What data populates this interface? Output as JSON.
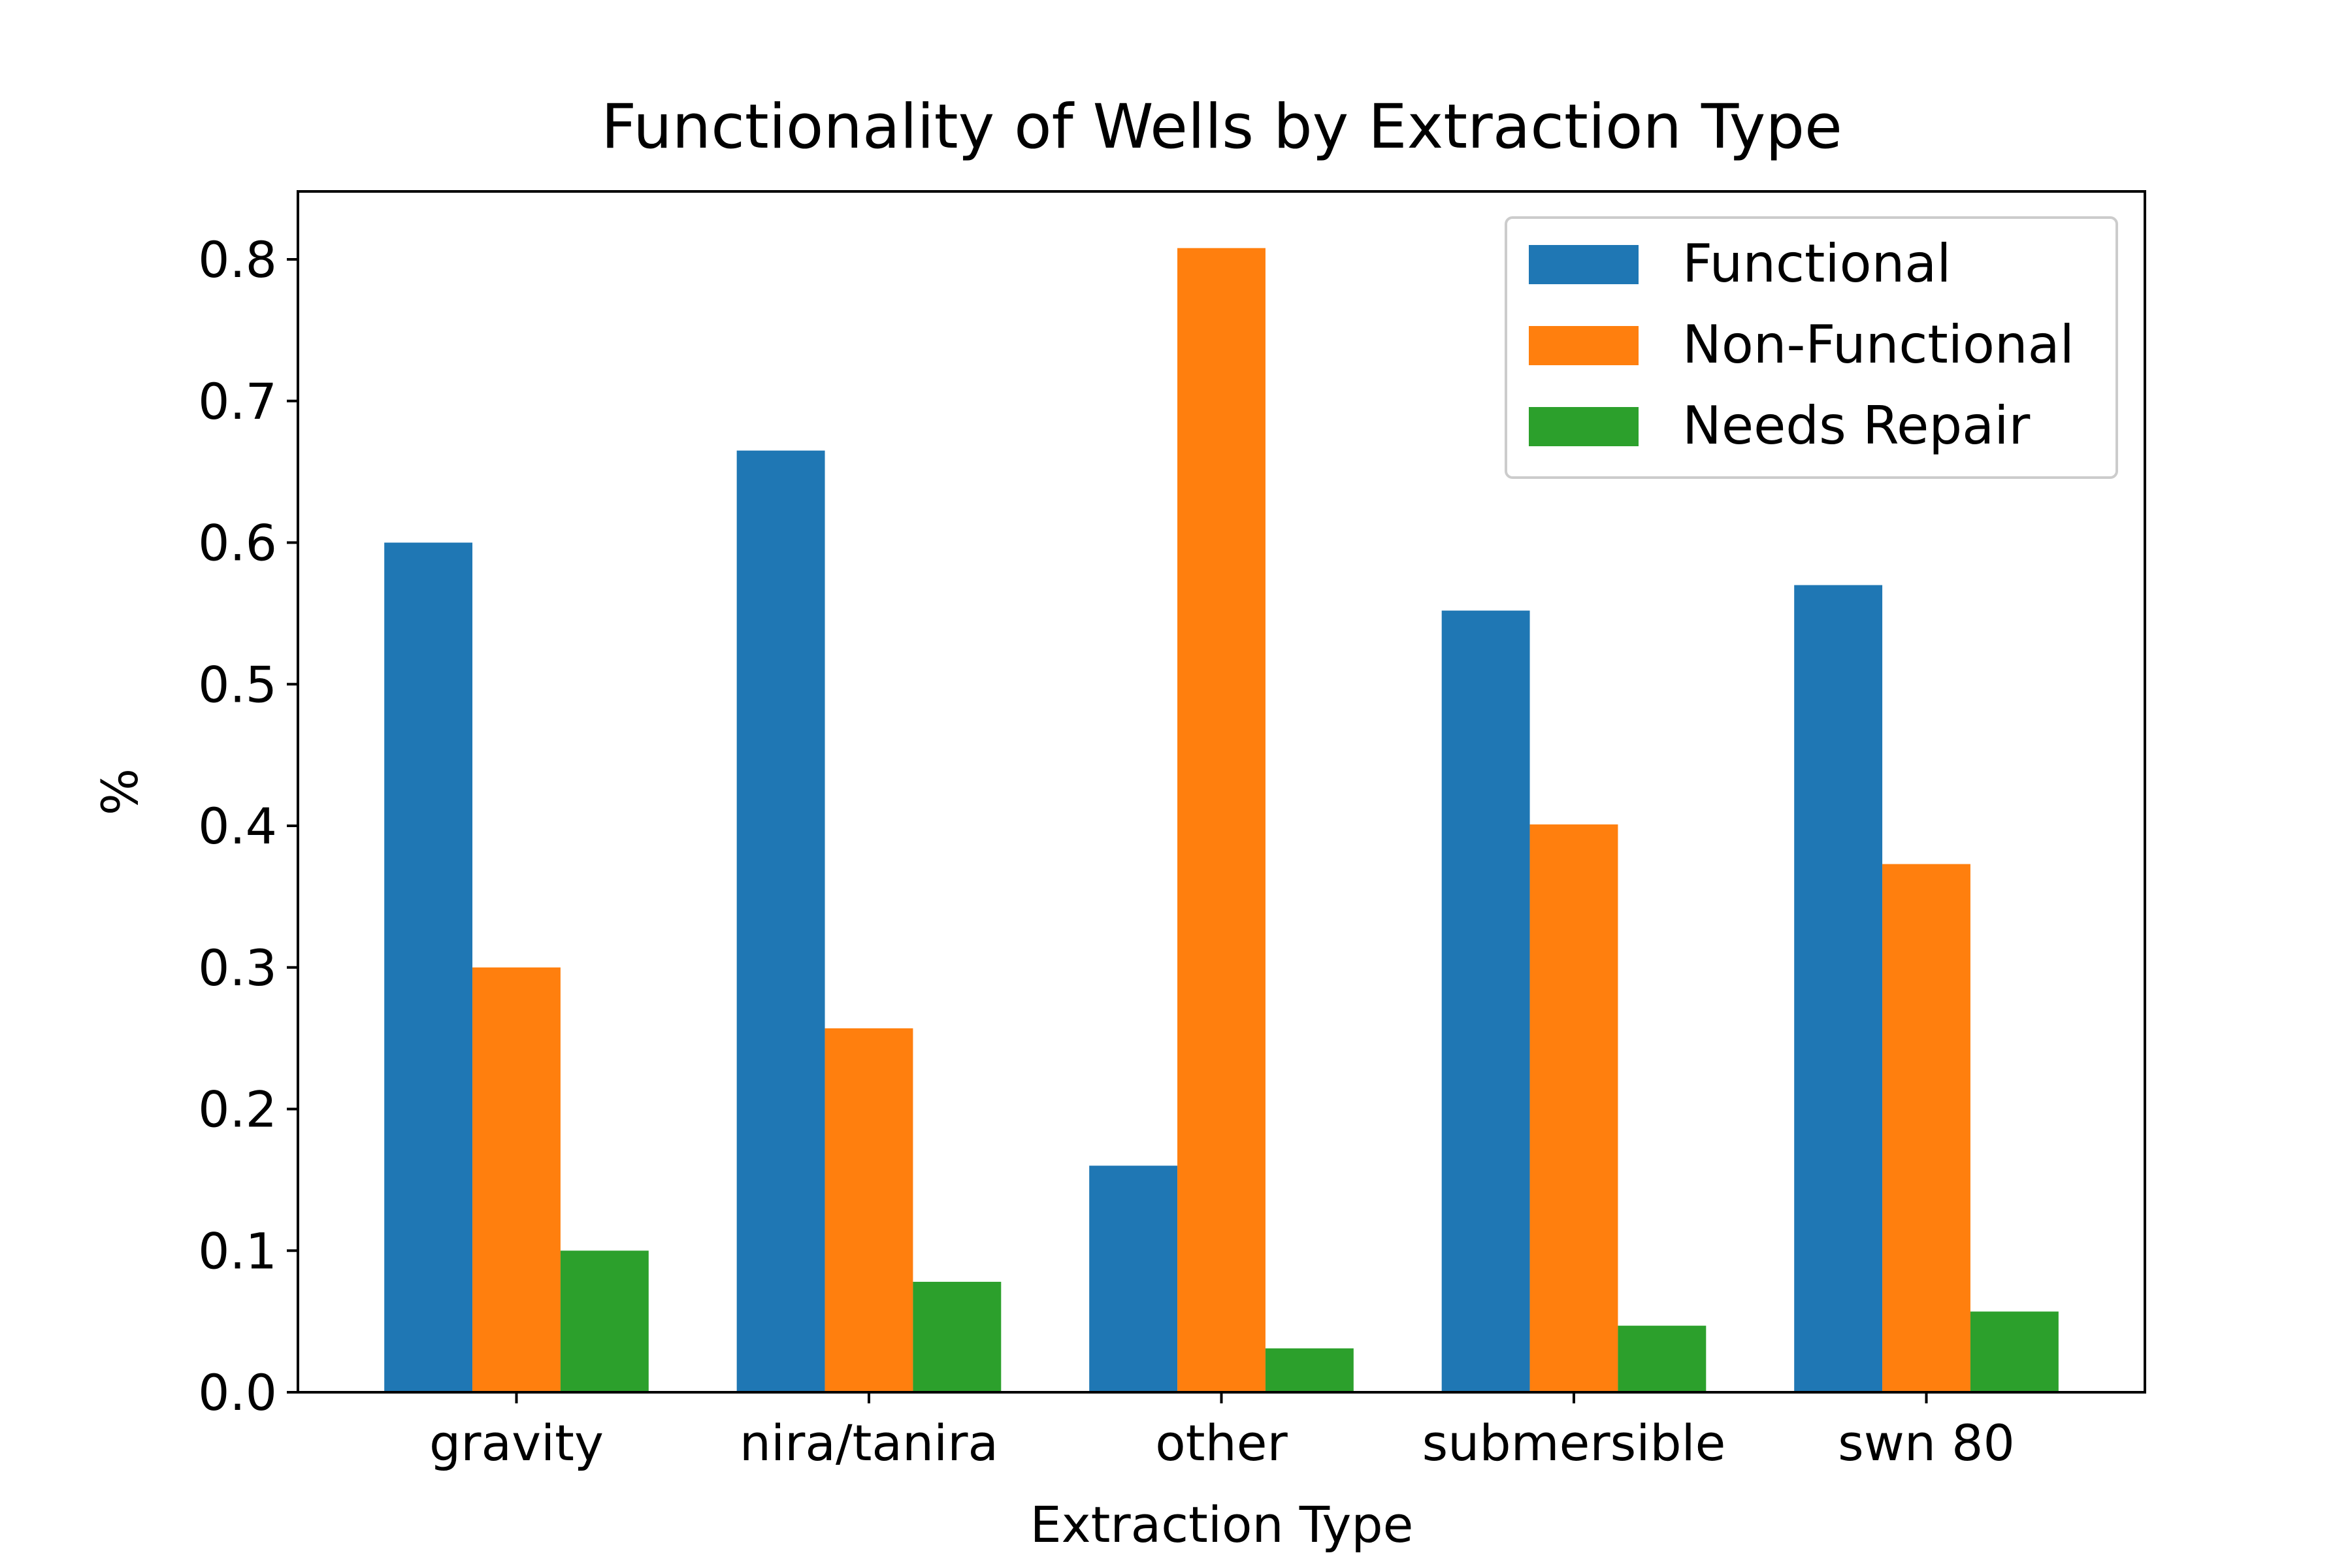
{
  "chart_data": {
    "type": "bar",
    "title": "Functionality of Wells by Extraction Type",
    "xlabel": "Extraction Type",
    "ylabel": "%",
    "categories": [
      "gravity",
      "nira/tanira",
      "other",
      "submersible",
      "swn 80"
    ],
    "series": [
      {
        "name": "Functional",
        "color": "#1f77b4",
        "values": [
          0.6,
          0.665,
          0.16,
          0.552,
          0.57
        ]
      },
      {
        "name": "Non-Functional",
        "color": "#ff7f0e",
        "values": [
          0.3,
          0.257,
          0.808,
          0.401,
          0.373
        ]
      },
      {
        "name": "Needs Repair",
        "color": "#2ca02c",
        "values": [
          0.1,
          0.078,
          0.031,
          0.047,
          0.057
        ]
      }
    ],
    "ylim": [
      0,
      0.848
    ],
    "yticks": [
      "0.0",
      "0.1",
      "0.2",
      "0.3",
      "0.4",
      "0.5",
      "0.6",
      "0.7",
      "0.8"
    ],
    "grid": false,
    "legend_position": "upper right"
  }
}
